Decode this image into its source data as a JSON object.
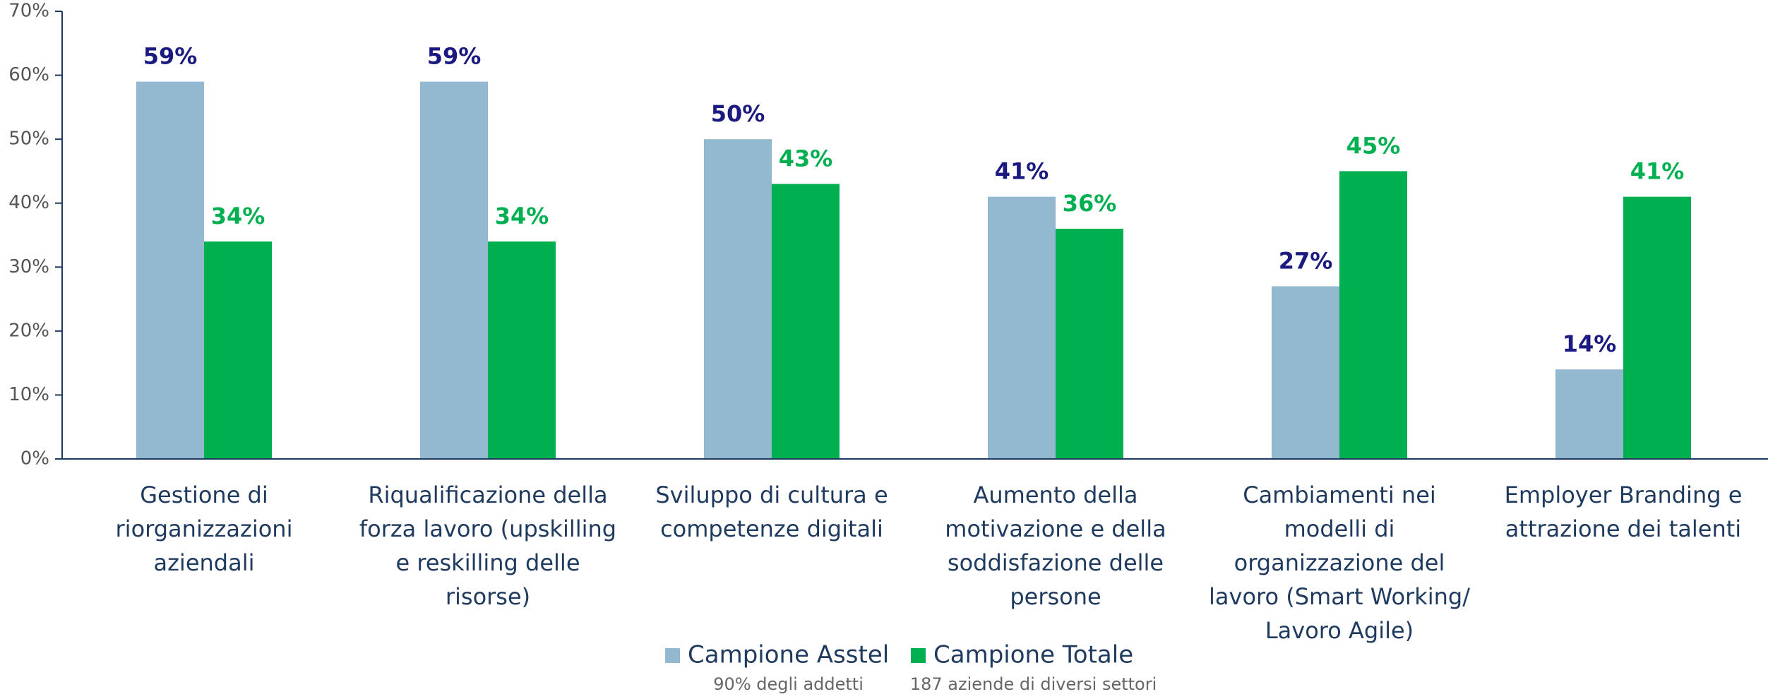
{
  "chart_data": {
    "type": "bar",
    "categories": [
      "Gestione di riorganizzazioni aziendali",
      "Riqualificazione della forza lavoro (upskilling e reskilling delle risorse)",
      "Sviluppo di cultura e competenze digitali",
      "Aumento della motivazione e della soddisfazione delle persone",
      "Cambiamenti nei modelli di organizzazione del lavoro (Smart Working/ Lavoro Agile)",
      "Employer Branding e attrazione dei talenti"
    ],
    "series": [
      {
        "name": "Campione Asstel",
        "note": "90% degli addetti",
        "color": "#93b9d0",
        "label_color": "#1a1a80",
        "values": [
          59,
          59,
          50,
          41,
          27,
          14
        ],
        "value_labels": [
          "59%",
          "59%",
          "50%",
          "41%",
          "27%",
          "14%"
        ]
      },
      {
        "name": "Campione Totale",
        "note": "187 aziende di diversi settori",
        "color": "#00b050",
        "label_color": "#00b050",
        "values": [
          34,
          34,
          43,
          36,
          45,
          41
        ],
        "value_labels": [
          "34%",
          "34%",
          "43%",
          "36%",
          "45%",
          "41%"
        ]
      }
    ],
    "ylim": [
      0,
      70
    ],
    "yticks": [
      {
        "value": 0,
        "label": "0%"
      },
      {
        "value": 10,
        "label": "10%"
      },
      {
        "value": 20,
        "label": "20%"
      },
      {
        "value": 30,
        "label": "30%"
      },
      {
        "value": 40,
        "label": "40%"
      },
      {
        "value": 50,
        "label": "50%"
      },
      {
        "value": 60,
        "label": "60%"
      },
      {
        "value": 70,
        "label": "70%"
      }
    ],
    "grid": false,
    "legend": "bottom"
  }
}
